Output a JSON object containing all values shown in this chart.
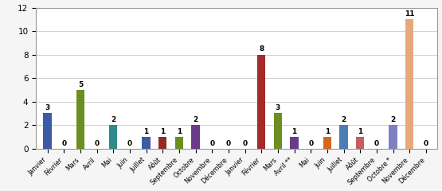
{
  "categories": [
    "Janvier",
    "Février",
    "Mars",
    "Avril",
    "Mai",
    "Juin",
    "Juillet",
    "Aôût",
    "Septembre",
    "Octobre",
    "Novembre",
    "Décembre",
    "Janvier",
    "Février",
    "Mars",
    "Avril **",
    "Mai",
    "Juin",
    "Juillet",
    "Aôût",
    "Septembre",
    "Octobre *",
    "Novembre",
    "Décembre"
  ],
  "values": [
    3,
    0,
    5,
    0,
    2,
    0,
    1,
    1,
    1,
    2,
    0,
    0,
    0,
    8,
    3,
    1,
    0,
    1,
    2,
    1,
    0,
    2,
    11,
    0
  ],
  "bar_colors": [
    "#3B5BA5",
    "#922B21",
    "#6B8E23",
    "#6B3B8B",
    "#2E8B8B",
    "#8B6914",
    "#3B5BA5",
    "#922B21",
    "#6B8E23",
    "#6B3B8B",
    "#2E8B8B",
    "#8B6914",
    "#3B5BA5",
    "#A52A2A",
    "#6B8E23",
    "#6B3B8B",
    "#2E8B8B",
    "#D2691E",
    "#4A7DB5",
    "#C06060",
    "#6B8E23",
    "#8080C0",
    "#E8A87C",
    "#7B8B5B"
  ],
  "ylim": [
    0,
    12
  ],
  "yticks": [
    0,
    2,
    4,
    6,
    8,
    10,
    12
  ],
  "background_color": "#f5f5f5",
  "plot_bg": "#ffffff",
  "grid_color": "#d0d0d0",
  "border_color": "#999999",
  "label_fontsize": 5.8,
  "value_fontsize": 6.5,
  "value_fontweight": "bold",
  "bar_width": 0.5
}
